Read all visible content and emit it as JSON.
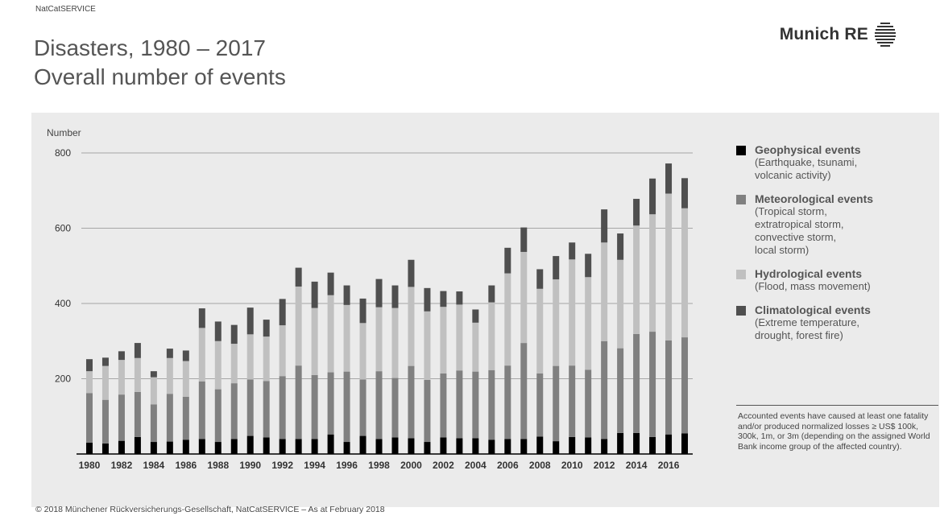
{
  "header": {
    "source": "NatCatSERVICE",
    "title": "Disasters, 1980 – 2017",
    "subtitle": "Overall number of events",
    "logo_text": "Munich RE"
  },
  "legend": [
    {
      "name": "Geophysical events",
      "desc": "(Earthquake, tsunami,\nvolcanic activity)",
      "color": "#000000"
    },
    {
      "name": "Meteorological events",
      "desc": "(Tropical storm,\nextratropical storm,\nconvective storm,\nlocal storm)",
      "color": "#808080"
    },
    {
      "name": "Hydrological events",
      "desc": "(Flood, mass movement)",
      "color": "#c0c0c0"
    },
    {
      "name": "Climatological events",
      "desc": "(Extreme temperature,\ndrought, forest fire)",
      "color": "#4f4f4f"
    }
  ],
  "note": "Accounted events have caused at least one fatality and/or produced normalized losses ≥ US$ 100k, 300k, 1m, or 3m (depending on the assigned World Bank income group of the affected country).",
  "footer": "© 2018 Münchener Rückversicherungs-Gesellschaft, NatCatSERVICE – As at February 2018",
  "chart_data": {
    "type": "bar",
    "stacked": true,
    "ylabel": "Number",
    "ylim": [
      0,
      800
    ],
    "yticks": [
      200,
      400,
      600,
      800
    ],
    "grid": true,
    "legend_position": "right",
    "categories": [
      "1980",
      "1981",
      "1982",
      "1983",
      "1984",
      "1985",
      "1986",
      "1987",
      "1988",
      "1989",
      "1990",
      "1991",
      "1992",
      "1993",
      "1994",
      "1995",
      "1996",
      "1997",
      "1998",
      "1999",
      "2000",
      "2001",
      "2002",
      "2003",
      "2004",
      "2005",
      "2006",
      "2007",
      "2008",
      "2009",
      "2010",
      "2011",
      "2012",
      "2013",
      "2014",
      "2015",
      "2016",
      "2017"
    ],
    "xtick_labels": [
      "1980",
      "1982",
      "1984",
      "1986",
      "1988",
      "1990",
      "1992",
      "1994",
      "1996",
      "1998",
      "2000",
      "2002",
      "2004",
      "2006",
      "2008",
      "2010",
      "2012",
      "2014",
      "2016"
    ],
    "series": [
      {
        "name": "Geophysical events",
        "color": "#000000",
        "values": [
          30,
          28,
          35,
          45,
          32,
          33,
          38,
          40,
          32,
          40,
          48,
          44,
          40,
          40,
          40,
          52,
          32,
          48,
          40,
          44,
          42,
          32,
          44,
          42,
          42,
          38,
          40,
          40,
          46,
          34,
          45,
          44,
          40,
          56,
          56,
          45,
          52,
          55
        ]
      },
      {
        "name": "Meteorological events",
        "color": "#808080",
        "values": [
          132,
          116,
          123,
          120,
          100,
          127,
          114,
          153,
          140,
          148,
          150,
          150,
          167,
          195,
          170,
          165,
          187,
          150,
          180,
          158,
          192,
          165,
          170,
          180,
          177,
          185,
          195,
          255,
          168,
          200,
          190,
          180,
          260,
          225,
          263,
          280,
          250,
          255
        ]
      },
      {
        "name": "Hydrological events",
        "color": "#c0c0c0",
        "values": [
          58,
          90,
          92,
          90,
          72,
          95,
          95,
          142,
          128,
          105,
          120,
          118,
          135,
          210,
          178,
          205,
          177,
          150,
          170,
          186,
          210,
          182,
          177,
          175,
          130,
          180,
          245,
          242,
          225,
          230,
          282,
          246,
          262,
          235,
          288,
          312,
          390,
          343
        ]
      },
      {
        "name": "Climatological events",
        "color": "#4f4f4f",
        "values": [
          32,
          22,
          23,
          40,
          16,
          25,
          28,
          52,
          52,
          50,
          71,
          45,
          70,
          50,
          70,
          60,
          52,
          65,
          75,
          60,
          72,
          62,
          42,
          35,
          35,
          45,
          68,
          65,
          52,
          62,
          45,
          62,
          88,
          70,
          71,
          95,
          80,
          80
        ]
      }
    ]
  }
}
